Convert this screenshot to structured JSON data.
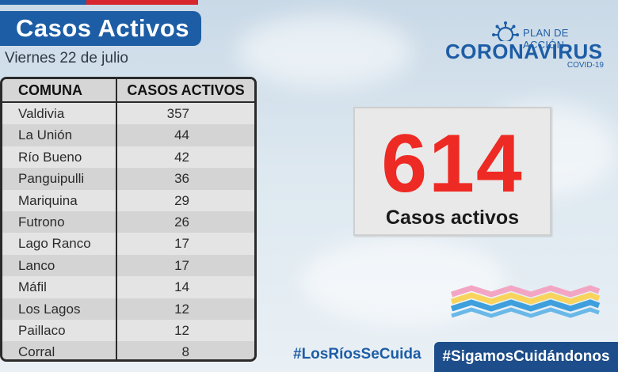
{
  "header": {
    "title": "Casos Activos",
    "date": "Viernes 22 de julio"
  },
  "table": {
    "headers": [
      "COMUNA",
      "CASOS ACTIVOS"
    ],
    "rows": [
      {
        "comuna": "Valdivia",
        "casos": "357"
      },
      {
        "comuna": "La Unión",
        "casos": "44"
      },
      {
        "comuna": "Río Bueno",
        "casos": "42"
      },
      {
        "comuna": "Panguipulli",
        "casos": "36"
      },
      {
        "comuna": "Mariquina",
        "casos": "29"
      },
      {
        "comuna": "Futrono",
        "casos": "26"
      },
      {
        "comuna": "Lago Ranco",
        "casos": "17"
      },
      {
        "comuna": "Lanco",
        "casos": "17"
      },
      {
        "comuna": "Máfil",
        "casos": "14"
      },
      {
        "comuna": "Los Lagos",
        "casos": "12"
      },
      {
        "comuna": "Paillaco",
        "casos": "12"
      },
      {
        "comuna": "Corral",
        "casos": "8"
      }
    ]
  },
  "logo": {
    "plan": "PLAN DE ACCIÓN",
    "name": "CORONAVIRUS",
    "sub": "COVID-19",
    "icon": "virus-icon"
  },
  "summary": {
    "total": "614",
    "label": "Casos activos"
  },
  "hashtags": {
    "left": "#LosRíosSeCuida",
    "right": "#SigamosCuidándonos"
  },
  "colors": {
    "brand_blue": "#1d5da5",
    "accent_red": "#ee2a24",
    "dark_blue": "#1d4d8a"
  }
}
